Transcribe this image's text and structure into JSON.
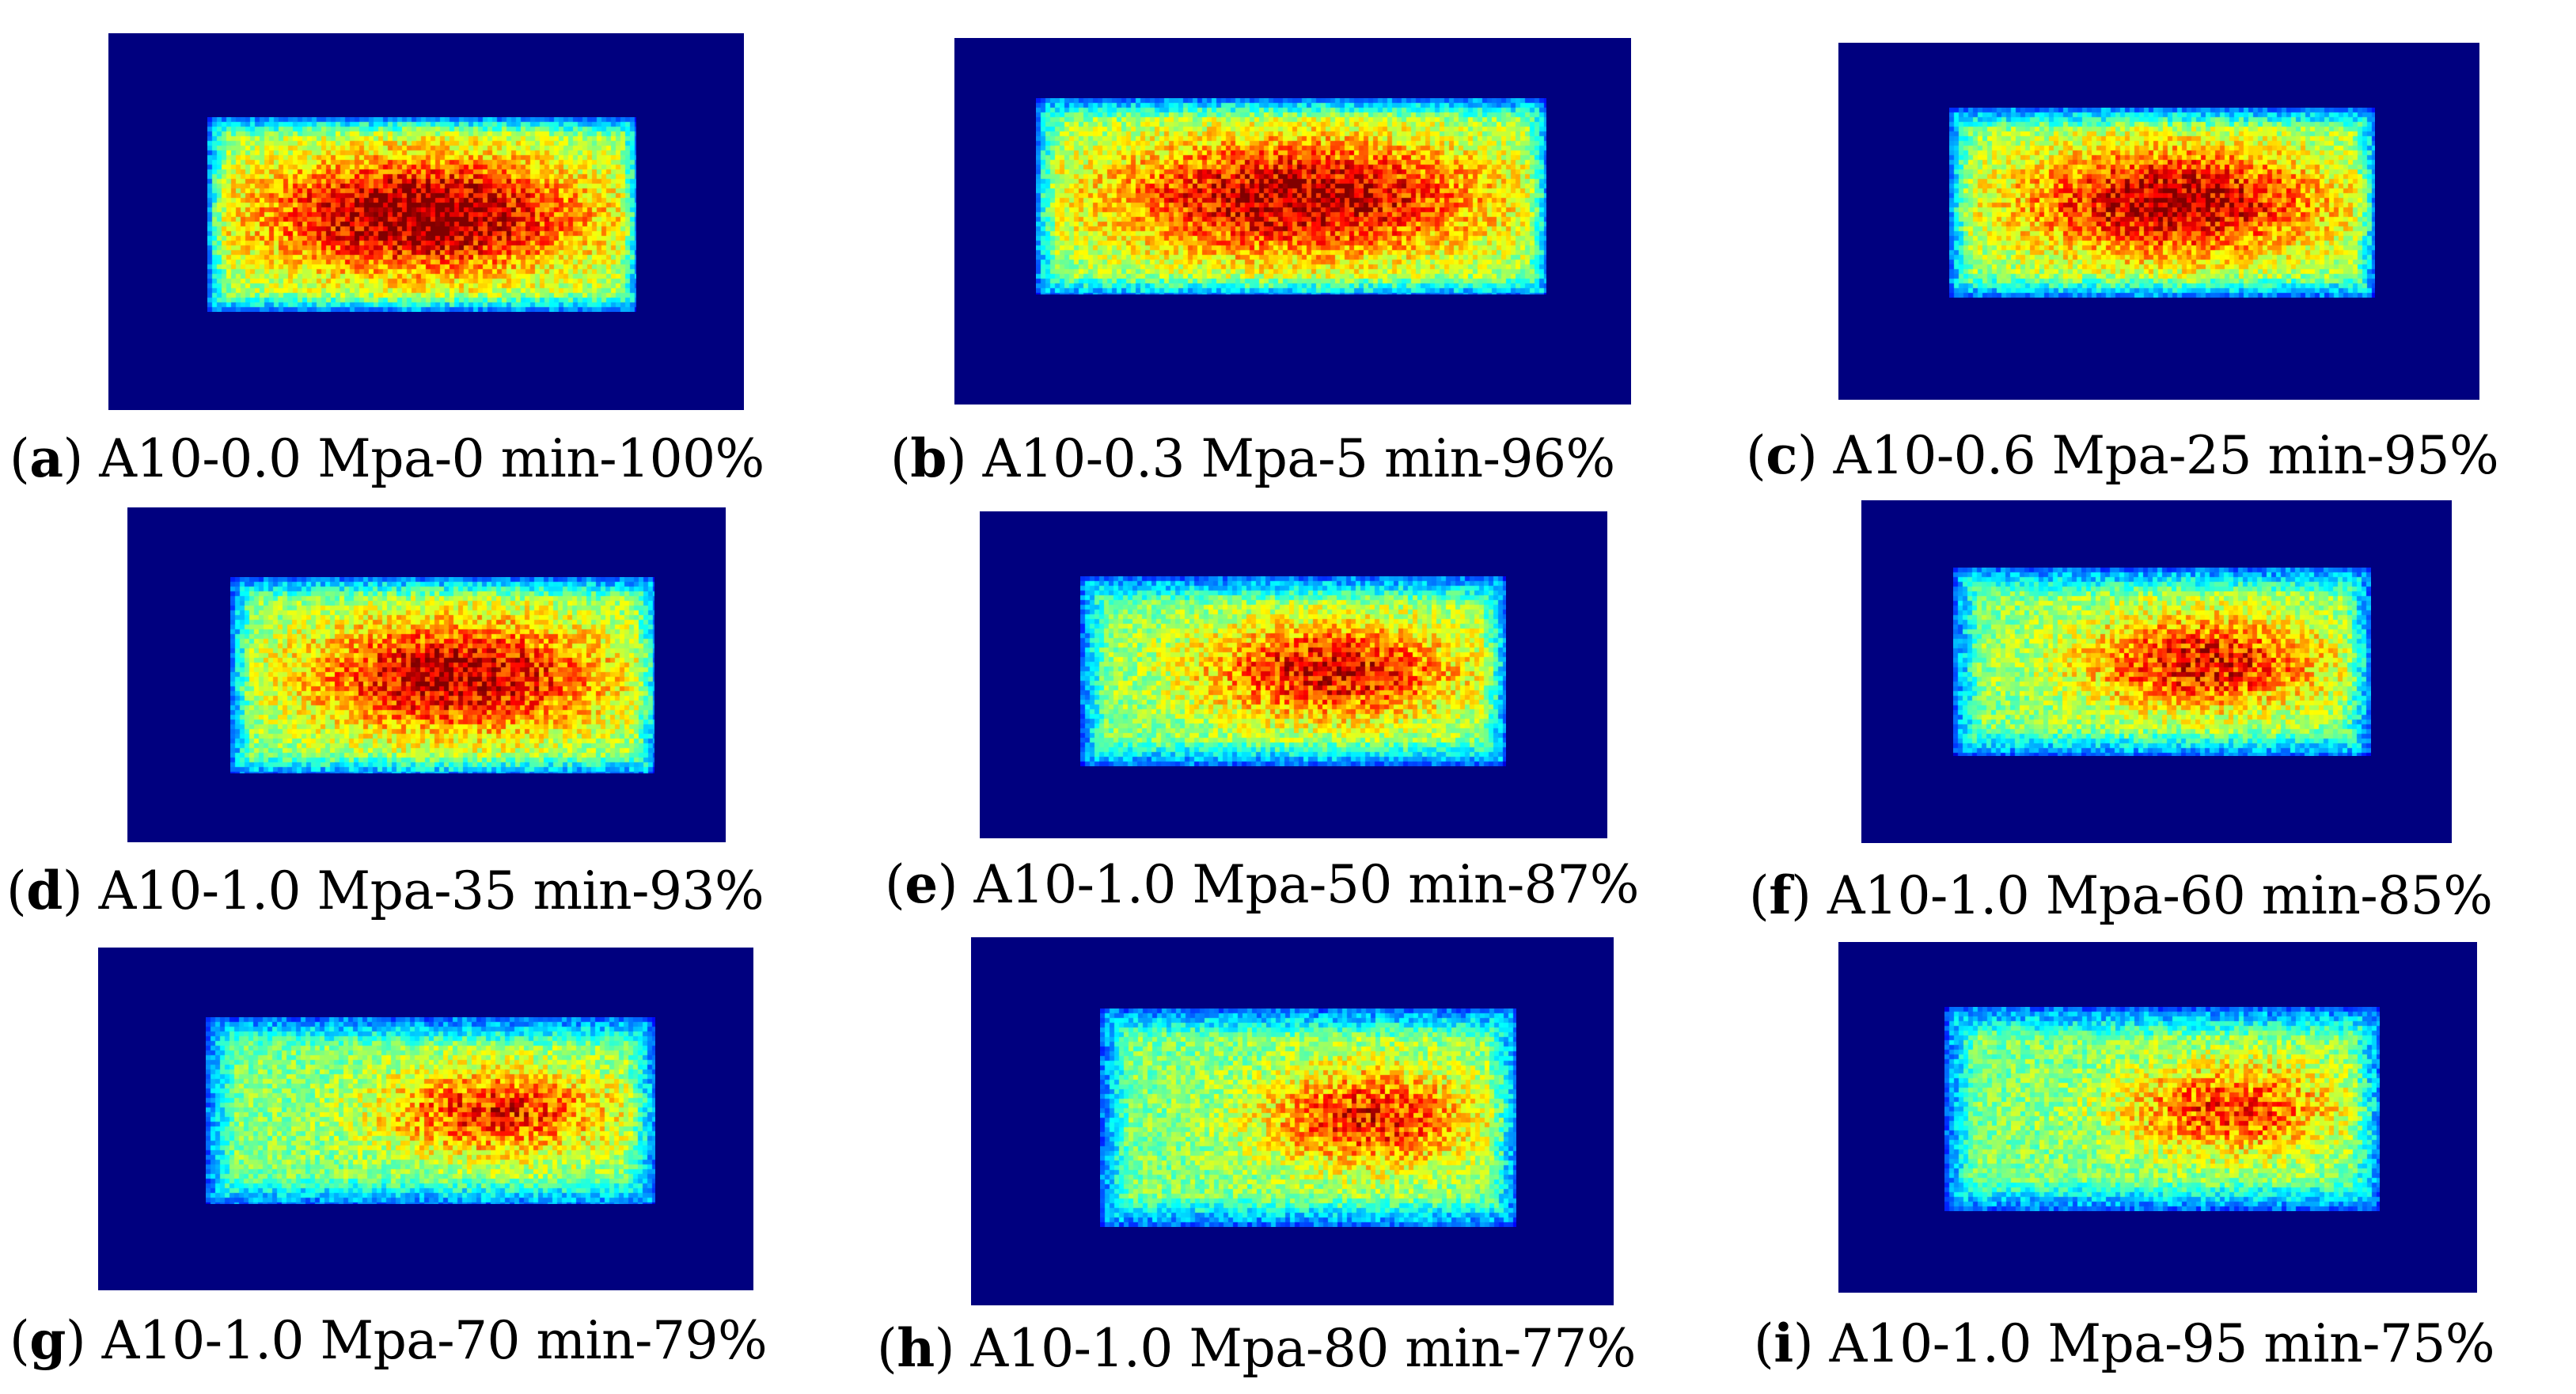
{
  "colors": {
    "background": "#00007f",
    "colormap": [
      "#00007f",
      "#0000ff",
      "#00ffff",
      "#00ff00",
      "#ffff00",
      "#ff0000"
    ]
  },
  "panels": [
    {
      "letter": "a",
      "caption": "A10-0.0 Mpa-0 min-100%",
      "intensity": 1.0,
      "hot_spread": 1.0
    },
    {
      "letter": "b",
      "caption": "A10-0.3 Mpa-5 min-96%",
      "intensity": 0.88,
      "hot_spread": 0.95
    },
    {
      "letter": "c",
      "caption": "A10-0.6 Mpa-25 min-95%",
      "intensity": 0.86,
      "hot_spread": 0.9
    },
    {
      "letter": "d",
      "caption": "A10-1.0 Mpa-35 min-93%",
      "intensity": 0.84,
      "hot_spread": 0.85
    },
    {
      "letter": "e",
      "caption": "A10-1.0 Mpa-50 min-87%",
      "intensity": 0.7,
      "hot_spread": 0.6
    },
    {
      "letter": "f",
      "caption": "A10-1.0 Mpa-60 min-85%",
      "intensity": 0.66,
      "hot_spread": 0.55
    },
    {
      "letter": "g",
      "caption": "A10-1.0 Mpa-70 min-79%",
      "intensity": 0.58,
      "hot_spread": 0.35
    },
    {
      "letter": "h",
      "caption": "A10-1.0 Mpa-80 min-77%",
      "intensity": 0.6,
      "hot_spread": 0.35
    },
    {
      "letter": "i",
      "caption": "A10-1.0 Mpa-95 min-75%",
      "intensity": 0.52,
      "hot_spread": 0.3
    }
  ]
}
